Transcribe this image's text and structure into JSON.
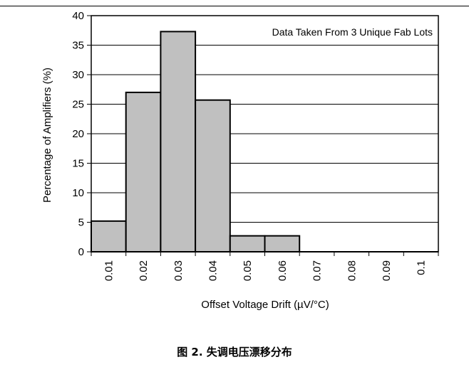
{
  "chart_data": {
    "type": "bar",
    "title": "",
    "annotation": "Data Taken From 3 Unique Fab Lots",
    "xlabel": "Offset Voltage Drift (µV/°C)",
    "ylabel": "Percentage of Amplifiers (%)",
    "categories": [
      "0.01",
      "0.02",
      "0.03",
      "0.04",
      "0.05",
      "0.06",
      "0.07",
      "0.08",
      "0.09",
      "0.1"
    ],
    "values": [
      5.2,
      27,
      37.3,
      25.7,
      2.7,
      2.7,
      0,
      0,
      0,
      0
    ],
    "ylim": [
      0,
      40
    ],
    "yticks": [
      0,
      5,
      10,
      15,
      20,
      25,
      30,
      35,
      40
    ],
    "grid": true,
    "bar_color": "#c0c0c0"
  },
  "caption": "图 2. 失调电压漂移分布"
}
